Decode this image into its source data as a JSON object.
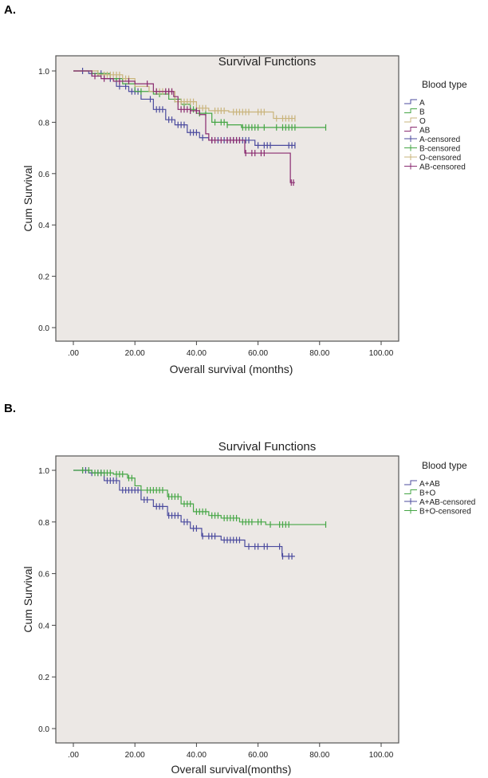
{
  "chart_data": [
    {
      "panel_label": "A.",
      "type": "line",
      "title": "Survival Functions",
      "xlabel": "Overall survival (months)",
      "ylabel": "Cum Survival",
      "xlim": [
        0,
        100
      ],
      "ylim": [
        0,
        1
      ],
      "xticks": [
        ".00",
        "20.00",
        "40.00",
        "60.00",
        "80.00",
        "100.00"
      ],
      "yticks": [
        "0.0",
        "0.2",
        "0.4",
        "0.6",
        "0.8",
        "1.0"
      ],
      "grid": false,
      "legend_title": "Blood type",
      "legend_placement": "right",
      "legend": [
        "A",
        "B",
        "O",
        "AB",
        "A-censored",
        "B-censored",
        "O-censored",
        "AB-censored"
      ],
      "series": [
        {
          "name": "A",
          "color": "#4b4b9e",
          "steps": [
            [
              0,
              1.0
            ],
            [
              5,
              0.99
            ],
            [
              10,
              0.97
            ],
            [
              14,
              0.94
            ],
            [
              18,
              0.92
            ],
            [
              22,
              0.89
            ],
            [
              26,
              0.85
            ],
            [
              30,
              0.81
            ],
            [
              33,
              0.79
            ],
            [
              37,
              0.76
            ],
            [
              41,
              0.74
            ],
            [
              44,
              0.73
            ],
            [
              59,
              0.71
            ],
            [
              72,
              0.71
            ]
          ],
          "censored": [
            3,
            6,
            9,
            12,
            15,
            17,
            19,
            20,
            21,
            25,
            27,
            28,
            29,
            31,
            32,
            34,
            35,
            36,
            38,
            39,
            40,
            42,
            45,
            47,
            49,
            50,
            51,
            52,
            53,
            54,
            55,
            56,
            57,
            60,
            62,
            63,
            64,
            70,
            71,
            72
          ]
        },
        {
          "name": "B",
          "color": "#45a645",
          "steps": [
            [
              0,
              1.0
            ],
            [
              6,
              0.99
            ],
            [
              12,
              0.97
            ],
            [
              16,
              0.95
            ],
            [
              20,
              0.92
            ],
            [
              26,
              0.91
            ],
            [
              31,
              0.89
            ],
            [
              35,
              0.87
            ],
            [
              38,
              0.85
            ],
            [
              40,
              0.835
            ],
            [
              45,
              0.8
            ],
            [
              50,
              0.79
            ],
            [
              54.6,
              0.78
            ],
            [
              82,
              0.78
            ]
          ],
          "censored": [
            8,
            14,
            22,
            28,
            33,
            36,
            39,
            41,
            43,
            46,
            48,
            49,
            50,
            55,
            56,
            57,
            58,
            59,
            60,
            62,
            66,
            68,
            69,
            70,
            71,
            72,
            82
          ]
        },
        {
          "name": "O",
          "color": "#c9b47c",
          "steps": [
            [
              0,
              1.0
            ],
            [
              8,
              0.985
            ],
            [
              16,
              0.97
            ],
            [
              20,
              0.94
            ],
            [
              24.6,
              0.92
            ],
            [
              33,
              0.88
            ],
            [
              40,
              0.855
            ],
            [
              44,
              0.845
            ],
            [
              50.5,
              0.84
            ],
            [
              65,
              0.815
            ],
            [
              72,
              0.815
            ]
          ],
          "censored": [
            10,
            11,
            12,
            13,
            14,
            15,
            17,
            18,
            27,
            28,
            29,
            30,
            31,
            32,
            34,
            35,
            36,
            37,
            38,
            39,
            41,
            42,
            43,
            46,
            47,
            48,
            49,
            52,
            53,
            54,
            55,
            56,
            57,
            60,
            61,
            62,
            66,
            68,
            69,
            70,
            71,
            72
          ]
        },
        {
          "name": "AB",
          "color": "#8a2b70",
          "steps": [
            [
              0,
              1.0
            ],
            [
              6,
              0.98
            ],
            [
              9,
              0.97
            ],
            [
              13,
              0.96
            ],
            [
              20,
              0.95
            ],
            [
              26,
              0.92
            ],
            [
              32.6,
              0.9
            ],
            [
              34,
              0.85
            ],
            [
              38,
              0.845
            ],
            [
              41,
              0.83
            ],
            [
              43,
              0.755
            ],
            [
              44,
              0.73
            ],
            [
              55.7,
              0.68
            ],
            [
              70,
              0.68
            ],
            [
              70.5,
              0.565
            ],
            [
              72,
              0.565
            ]
          ],
          "censored": [
            7,
            10,
            15,
            18,
            24,
            27,
            30,
            31,
            32,
            35,
            36,
            37,
            38,
            40,
            45,
            46,
            48,
            50,
            51,
            52,
            53,
            54,
            56,
            58,
            59,
            61,
            62,
            70.8,
            71.5
          ]
        }
      ]
    },
    {
      "panel_label": "B.",
      "type": "line",
      "title": "Survival Functions",
      "xlabel": "Overall survival(months)",
      "ylabel": "Cum Survival",
      "xlim": [
        0,
        100
      ],
      "ylim": [
        0,
        1
      ],
      "xticks": [
        ".00",
        "20.00",
        "40.00",
        "60.00",
        "80.00",
        "100.00"
      ],
      "yticks": [
        "0.0",
        "0.2",
        "0.4",
        "0.6",
        "0.8",
        "1.0"
      ],
      "grid": false,
      "legend_title": "Blood type",
      "legend_placement": "right",
      "legend": [
        "A+AB",
        "B+O",
        "A+AB-censored",
        "B+O-censored"
      ],
      "series": [
        {
          "name": "A+AB",
          "color": "#4b4b9e",
          "steps": [
            [
              0,
              1.0
            ],
            [
              5,
              0.99
            ],
            [
              10,
              0.96
            ],
            [
              15,
              0.923
            ],
            [
              22,
              0.886
            ],
            [
              26,
              0.86
            ],
            [
              30.6,
              0.825
            ],
            [
              35,
              0.8
            ],
            [
              38,
              0.775
            ],
            [
              41.7,
              0.745
            ],
            [
              48,
              0.73
            ],
            [
              55.7,
              0.705
            ],
            [
              67.6,
              0.705
            ],
            [
              67.8,
              0.667
            ],
            [
              72,
              0.667
            ]
          ],
          "censored": [
            3,
            4,
            6,
            8,
            9,
            11,
            12,
            13,
            14,
            16,
            17,
            18,
            19,
            20,
            21,
            23,
            24,
            27,
            28,
            29,
            31,
            32,
            33,
            34,
            36,
            37,
            39,
            40,
            42,
            44,
            45,
            46,
            49,
            50,
            51,
            52,
            53,
            54,
            57,
            59,
            60,
            62,
            63,
            67,
            68,
            70,
            71
          ]
        },
        {
          "name": "B+O",
          "color": "#45a645",
          "steps": [
            [
              0,
              1.0
            ],
            [
              6,
              0.99
            ],
            [
              13,
              0.985
            ],
            [
              17.6,
              0.97
            ],
            [
              20,
              0.94
            ],
            [
              22,
              0.923
            ],
            [
              30.6,
              0.898
            ],
            [
              35,
              0.87
            ],
            [
              39,
              0.84
            ],
            [
              44,
              0.825
            ],
            [
              48,
              0.815
            ],
            [
              54,
              0.8
            ],
            [
              62.5,
              0.79
            ],
            [
              82,
              0.79
            ]
          ],
          "censored": [
            3,
            5,
            7,
            8,
            9,
            10,
            11,
            12,
            14,
            15,
            16,
            18,
            19,
            24,
            25,
            26,
            27,
            28,
            29,
            31,
            32,
            33,
            34,
            36,
            37,
            38,
            40,
            41,
            42,
            43,
            45,
            46,
            47,
            49,
            50,
            51,
            52,
            53,
            55,
            56,
            57,
            58,
            60,
            61,
            64,
            67,
            68,
            69,
            70,
            82
          ]
        }
      ]
    }
  ]
}
